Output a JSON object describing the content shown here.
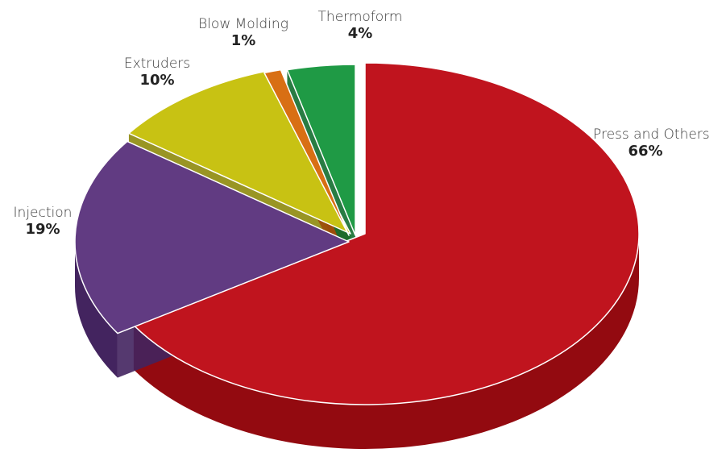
{
  "chart_data": {
    "type": "pie",
    "style": "3d-exploded",
    "slices": [
      {
        "key": "press",
        "label": "Press and Others",
        "value": 66,
        "value_label": "66%",
        "color": "#c0141e",
        "side_color": "#930a10"
      },
      {
        "key": "injection",
        "label": "Injection",
        "value": 19,
        "value_label": "19%",
        "color": "#613b82",
        "side_color": "#43245f"
      },
      {
        "key": "extruders",
        "label": "Extruders",
        "value": 10,
        "value_label": "10%",
        "color": "#c8c213",
        "side_color": "#8e8a0c"
      },
      {
        "key": "blow",
        "label": "Blow Molding",
        "value": 1,
        "value_label": "1%",
        "color": "#d86f14",
        "side_color": "#9c4c0a"
      },
      {
        "key": "thermo",
        "label": "Thermoform",
        "value": 4,
        "value_label": "4%",
        "color": "#1f9a45",
        "side_color": "#126e2f"
      }
    ]
  }
}
